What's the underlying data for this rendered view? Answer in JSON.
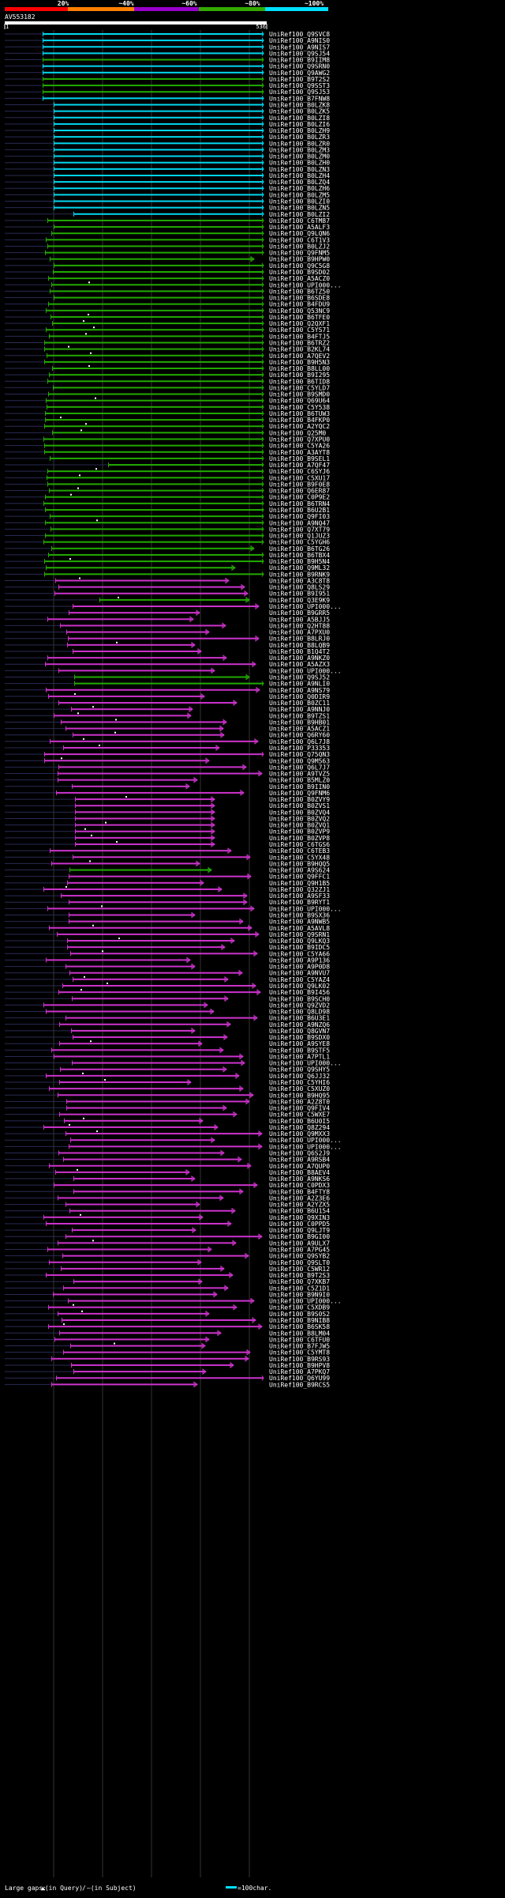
{
  "scale": {
    "labels": [
      "20%",
      "~40%",
      "~60%",
      "~80%",
      "~100%"
    ],
    "segment_colors": [
      "#ff0000",
      "#ff8000",
      "#9900cc",
      "#33aa00",
      "#00e0ff"
    ]
  },
  "query": {
    "name": "AV553182",
    "start_label": "1",
    "end_label": "536"
  },
  "footer": {
    "prefix": "Large gaps: ",
    "in_query": "▲(in Query)",
    "slash": "/",
    "in_subject": "—(in Subject)",
    "legend_text": "=100char.",
    "legend_color": "#00e0ff"
  },
  "hits": [
    "UniRef100_Q9SVC8",
    "UniRef100_A9NIS0",
    "UniRef100_A9NIS7",
    "UniRef100_Q9SJ54",
    "UniRef100_B9IIM8",
    "UniRef100_Q9SRN0",
    "UniRef100_Q9AWG2",
    "UniRef100_B9T2S2",
    "UniRef100_Q9SST3",
    "UniRef100_Q9SJ53",
    "UniRef100_B7FNW8",
    "UniRef100_B0LZK8",
    "UniRef100_B0LZK5",
    "UniRef100_B0LZI8",
    "UniRef100_B0LZI6",
    "UniRef100_B0LZH9",
    "UniRef100_B0LZR3",
    "UniRef100_B0LZR0",
    "UniRef100_B0LZM3",
    "UniRef100_B0LZM0",
    "UniRef100_B0LZH0",
    "UniRef100_B0LZN3",
    "UniRef100_B0LZH4",
    "UniRef100_B0LZQ4",
    "UniRef100_B0LZH6",
    "UniRef100_B0LZM5",
    "UniRef100_B0LZI0",
    "UniRef100_B0LZN5",
    "UniRef100_B0LZI2",
    "UniRef100_C6TM87",
    "UniRef100_A5ALF3",
    "UniRef100_Q9LQN6",
    "UniRef100_C6T1V3",
    "UniRef100_B0LZJ2",
    "UniRef100_Q9FNM5",
    "UniRef100_B9HPW0",
    "UniRef100_Q9C5G8",
    "UniRef100_B9SD02",
    "UniRef100_A5ACZ0",
    "UniRef100_UPI000...",
    "UniRef100_B6TZ50",
    "UniRef100_B6SDE8",
    "UniRef100_B4FDU9",
    "UniRef100_Q53NC9",
    "UniRef100_B6TFE0",
    "UniRef100_Q2QXF1",
    "UniRef100_C5YS71",
    "UniRef100_B4FTJ5",
    "UniRef100_B6TRZ2",
    "UniRef100_B2KL74",
    "UniRef100_A7QEV2",
    "UniRef100_B9H5N3",
    "UniRef100_B8LL00",
    "UniRef100_B9I295",
    "UniRef100_B6TID8",
    "UniRef100_C5YLD7",
    "UniRef100_B9SMD0",
    "UniRef100_Q69U64",
    "UniRef100_C5Y538",
    "UniRef100_B6TUW3",
    "UniRef100_B4FKP0",
    "UniRef100_A2YQC2",
    "UniRef100_Q25M0",
    "UniRef100_Q7XPU0",
    "UniRef100_C5YA26",
    "UniRef100_A3AYT8",
    "UniRef100_B9SEL1",
    "UniRef100_A7QF47",
    "UniRef100_C6SYJ6",
    "UniRef100_C5XU17",
    "UniRef100_B9F0E8",
    "UniRef100_Q6ER87",
    "UniRef100_C0P9E2",
    "UniRef100_B6TRN4",
    "UniRef100_B6U2B1",
    "UniRef100_Q9FI03",
    "UniRef100_A9NQ47",
    "UniRef100_Q7XT79",
    "UniRef100_Q1JUZ3",
    "UniRef100_C5YGH6",
    "UniRef100_B6TG26",
    "UniRef100_B6TBX4",
    "UniRef100_B9H5N4",
    "UniRef100_Q9ML32",
    "UniRef100_B9RNK9",
    "UniRef100_A3C8T8",
    "UniRef100_Q8LS29",
    "UniRef100_B9I951",
    "UniRef100_Q3E9K9",
    "UniRef100_UPI000...",
    "UniRef100_B9GRR5",
    "UniRef100_A5BJJ5",
    "UniRef100_Q2HT88",
    "UniRef100_A7PXU0",
    "UniRef100_B8LRJ0",
    "UniRef100_B8LQB9",
    "UniRef100_B1Q4T2",
    "UniRef100_A9NKZ0",
    "UniRef100_A5AZX3",
    "UniRef100_UPI000...",
    "UniRef100_Q9SJ52",
    "UniRef100_A9NLI0",
    "UniRef100_A9NS79",
    "UniRef100_Q0DIR9",
    "UniRef100_B0ZC11",
    "UniRef100_A9NNJ0",
    "UniRef100_B9TZS1",
    "UniRef100_B9HB01",
    "UniRef100_A5ACZ1",
    "UniRef100_Q6RY60",
    "UniRef100_Q6L7J8",
    "UniRef100_P33353",
    "UniRef100_Q75QN3",
    "UniRef100_Q9M563",
    "UniRef100_Q6L7J7",
    "UniRef100_A9TVZ5",
    "UniRef100_B5MLZ0",
    "UniRef100_B9IIN0",
    "UniRef100_Q9FNM6",
    "UniRef100_B0ZVY9",
    "UniRef100_B0ZVS1",
    "UniRef100_B0ZVQ4",
    "UniRef100_B0ZVQ2",
    "UniRef100_B0ZVQ1",
    "UniRef100_B0ZVP9",
    "UniRef100_B0ZVP8",
    "UniRef100_C6TGS6",
    "UniRef100_C6TEB3",
    "UniRef100_C5YX48",
    "UniRef100_B9HQQ5",
    "UniRef100_A9S624",
    "UniRef100_Q9FFC1",
    "UniRef100_Q9H1B5",
    "UniRef100_Q32ZJ1",
    "UniRef100_A9SF33",
    "UniRef100_B9RYT1",
    "UniRef100_UPI000...",
    "UniRef100_B9SX36",
    "UniRef100_A9NWB5",
    "UniRef100_A5AVL8",
    "UniRef100_Q9SRN1",
    "UniRef100_Q9LKQ3",
    "UniRef100_B9IDC5",
    "UniRef100_C5YA66",
    "UniRef100_A9P136",
    "UniRef100_A9P0D8",
    "UniRef100_A9NVU7",
    "UniRef100_C5YAZ4",
    "UniRef100_Q9LK02",
    "UniRef100_B9I456",
    "UniRef100_B9SCH0",
    "UniRef100_Q9ZVD2",
    "UniRef100_Q8LD98",
    "UniRef100_B6U3E1",
    "UniRef100_A9NZQ6",
    "UniRef100_Q8GVN7",
    "UniRef100_B9SDX0",
    "UniRef100_A9SYE8",
    "UniRef100_B9STF5",
    "UniRef100_A7PTL1",
    "UniRef100_UPI000...",
    "UniRef100_Q9SHY5",
    "UniRef100_Q6JJ32",
    "UniRef100_C5YHI6",
    "UniRef100_C5XUZ0",
    "UniRef100_B9HQ95",
    "UniRef100_A2Z8T0",
    "UniRef100_Q9FIV4",
    "UniRef100_C5WXE7",
    "UniRef100_B6U0I5",
    "UniRef100_Q8Z294",
    "UniRef100_Q9MXX3",
    "UniRef100_UPI000...",
    "UniRef100_UPI000...",
    "UniRef100_Q6S2J9",
    "UniRef100_A9RSB4",
    "UniRef100_A7QUP0",
    "UniRef100_B8AEV4",
    "UniRef100_A9NKS6",
    "UniRef100_C0PDX3",
    "UniRef100_B4FTY8",
    "UniRef100_A2Z3E6",
    "UniRef100_A2YZX5",
    "UniRef100_B6U154",
    "UniRef100_Q9XIN3",
    "UniRef100_C0PPD5",
    "UniRef100_Q9LJT9",
    "UniRef100_B9GI00",
    "UniRef100_A9ULX7",
    "UniRef100_A7PG45",
    "UniRef100_Q9SYB2",
    "UniRef100_Q9SLT0",
    "UniRef100_C5WR12",
    "UniRef100_B9T2S3",
    "UniRef100_Q7XKB7",
    "UniRef100_C5Z1D1",
    "UniRef100_B9N9I0",
    "UniRef100_UPI000...",
    "UniRef100_C5XDB9",
    "UniRef100_B9S0S2",
    "UniRef100_B9NIB8",
    "UniRef100_B6SK58",
    "UniRef100_B8LM04",
    "UniRef100_C6TFU0",
    "UniRef100_B7FJW5",
    "UniRef100_C5YMT8",
    "UniRef100_B9RS93",
    "UniRef100_B9HPV8",
    "UniRef100_A7PKQ7",
    "UniRef100_Q6YU99",
    "UniRef100_B9RCS5"
  ]
}
